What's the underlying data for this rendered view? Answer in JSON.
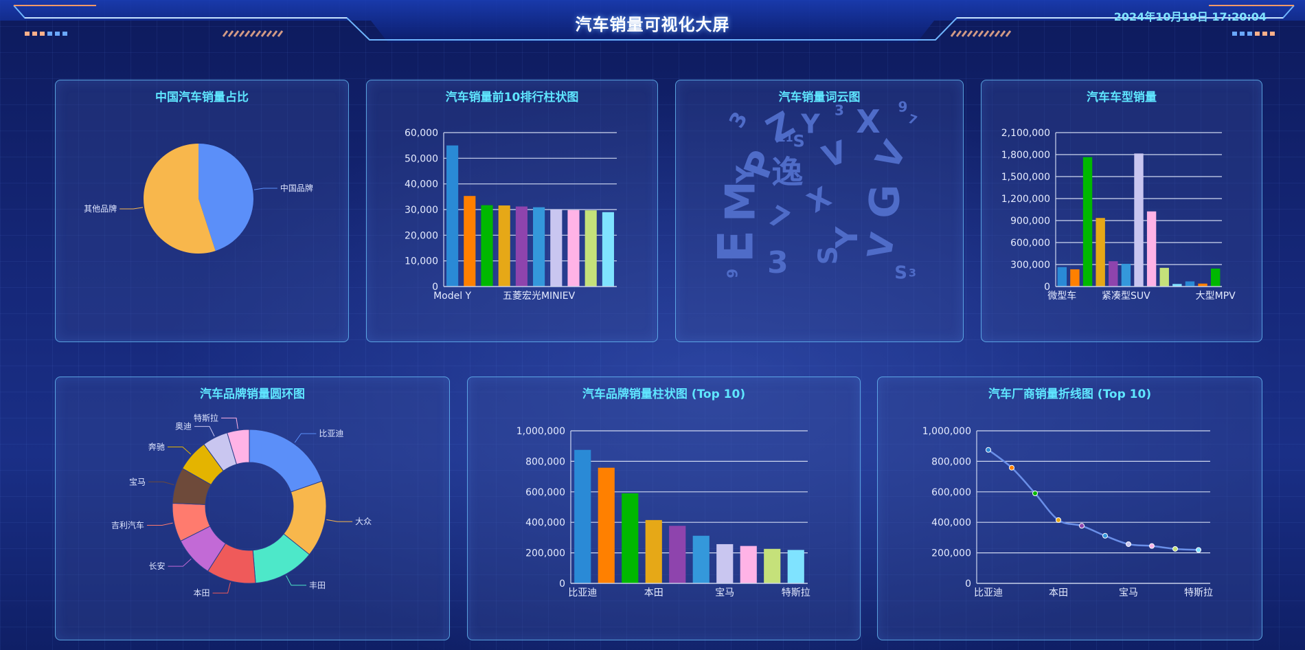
{
  "header": {
    "title": "汽车销量可视化大屏",
    "datetime": "2024年10月19日 17:20:04"
  },
  "panels": {
    "p1": {
      "title": "中国汽车销量占比"
    },
    "p2": {
      "title": "汽车销量前10排行柱状图"
    },
    "p3": {
      "title": "汽车销量词云图"
    },
    "p4": {
      "title": "汽车车型销量"
    },
    "p5": {
      "title": "汽车品牌销量圆环图"
    },
    "p6": {
      "title": "汽车品牌销量柱状图 (Top 10)"
    },
    "p7": {
      "title": "汽车厂商销量折线图 (Top 10)"
    }
  },
  "palette": [
    "#2a8ad6",
    "#ff8000",
    "#00b800",
    "#e6a817",
    "#8e44ad",
    "#3498db",
    "#c9c6f0",
    "#ffb3e6",
    "#c5e17a",
    "#7fe3ff"
  ],
  "chart_data": [
    {
      "id": "p1",
      "type": "pie",
      "labels": [
        "中国品牌",
        "其他品牌"
      ],
      "values": [
        45,
        55
      ],
      "colors": [
        "#5b8ff9",
        "#f8b74c"
      ]
    },
    {
      "id": "p2",
      "type": "bar",
      "categories": [
        "Model Y",
        "",
        "",
        "",
        "",
        "五菱宏光MINIEV",
        "",
        "",
        "",
        ""
      ],
      "tick_labels": [
        "Model Y",
        "五菱宏光MINIEV"
      ],
      "values": [
        55000,
        35300,
        31700,
        31600,
        31200,
        30900,
        30000,
        29800,
        29700,
        29000
      ],
      "ylim": [
        0,
        60000
      ],
      "yticks": [
        "0",
        "10,000",
        "20,000",
        "30,000",
        "40,000",
        "50,000",
        "60,000"
      ]
    },
    {
      "id": "p3",
      "type": "wordcloud",
      "words": [
        {
          "text": "E",
          "size": 70,
          "x": 0.08,
          "y": 0.8,
          "rot": -90
        },
        {
          "text": "M",
          "size": 60,
          "x": 0.1,
          "y": 0.55,
          "rot": -90
        },
        {
          "text": "P",
          "size": 52,
          "x": 0.2,
          "y": 0.35,
          "rot": -70
        },
        {
          "text": "Y",
          "size": 36,
          "x": 0.12,
          "y": 0.4,
          "rot": -90
        },
        {
          "text": "Z",
          "size": 50,
          "x": 0.3,
          "y": 0.15,
          "rot": -30
        },
        {
          "text": "Y",
          "size": 38,
          "x": 0.45,
          "y": 0.13,
          "rot": 0
        },
        {
          "text": "3",
          "size": 30,
          "x": 0.08,
          "y": 0.1,
          "rot": -60
        },
        {
          "text": "3",
          "size": 44,
          "x": 0.28,
          "y": 0.9,
          "rot": 0
        },
        {
          "text": "7",
          "size": 40,
          "x": 0.28,
          "y": 0.65,
          "rot": 30
        },
        {
          "text": "逸",
          "size": 46,
          "x": 0.33,
          "y": 0.4,
          "rot": 0
        },
        {
          "text": "X",
          "size": 40,
          "x": 0.5,
          "y": 0.55,
          "rot": -30
        },
        {
          "text": "V",
          "size": 44,
          "x": 0.58,
          "y": 0.3,
          "rot": -20
        },
        {
          "text": "X",
          "size": 46,
          "x": 0.75,
          "y": 0.12,
          "rot": 0
        },
        {
          "text": "V",
          "size": 48,
          "x": 0.88,
          "y": 0.3,
          "rot": -60
        },
        {
          "text": "G",
          "size": 60,
          "x": 0.85,
          "y": 0.55,
          "rot": -90
        },
        {
          "text": "V",
          "size": 48,
          "x": 0.83,
          "y": 0.8,
          "rot": -80
        },
        {
          "text": "Y",
          "size": 44,
          "x": 0.65,
          "y": 0.75,
          "rot": -90
        },
        {
          "text": "S",
          "size": 38,
          "x": 0.55,
          "y": 0.85,
          "rot": -90
        },
        {
          "text": "S",
          "size": 26,
          "x": 0.92,
          "y": 0.95,
          "rot": 0
        },
        {
          "text": "3",
          "size": 16,
          "x": 0.98,
          "y": 0.95,
          "rot": 0
        },
        {
          "text": "9",
          "size": 20,
          "x": 0.93,
          "y": 0.03,
          "rot": 0
        },
        {
          "text": "11",
          "size": 16,
          "x": 0.32,
          "y": 0.2,
          "rot": 0
        },
        {
          "text": "S",
          "size": 24,
          "x": 0.39,
          "y": 0.22,
          "rot": 0
        },
        {
          "text": "9",
          "size": 20,
          "x": 0.05,
          "y": 0.95,
          "rot": -90
        },
        {
          "text": "3",
          "size": 20,
          "x": 0.6,
          "y": 0.05,
          "rot": 0
        },
        {
          "text": "7",
          "size": 18,
          "x": 0.98,
          "y": 0.1,
          "rot": 20
        }
      ]
    },
    {
      "id": "p4",
      "type": "bar",
      "categories": [
        "微型车",
        "",
        "",
        "",
        "",
        "紧凑型SUV",
        "",
        "",
        "",
        "",
        "",
        "",
        "大型MPV"
      ],
      "tick_labels": [
        "微型车",
        "紧凑型SUV",
        "大型MPV"
      ],
      "values": [
        265000,
        235000,
        1765000,
        935000,
        345000,
        310000,
        1815000,
        1025000,
        255000,
        35000,
        70000,
        40000,
        245000
      ],
      "ylim": [
        0,
        2100000
      ],
      "yticks": [
        "0",
        "300,000",
        "600,000",
        "900,000",
        "1,200,000",
        "1,500,000",
        "1,800,000",
        "2,100,000"
      ]
    },
    {
      "id": "p5",
      "type": "pie",
      "donut": true,
      "labels": [
        "比亚迪",
        "大众",
        "丰田",
        "本田",
        "长安",
        "吉利汽车",
        "宝马",
        "奔驰",
        "奥迪",
        "特斯拉"
      ],
      "values": [
        190,
        155,
        125,
        100,
        82,
        78,
        73,
        65,
        52,
        45
      ],
      "colors": [
        "#5b8ff9",
        "#f8b74c",
        "#4de8c9",
        "#ef5a5a",
        "#c26ad6",
        "#ff7b6e",
        "#6e4a3a",
        "#e4b400",
        "#c9c6f0",
        "#ffb3e6"
      ]
    },
    {
      "id": "p6",
      "type": "bar",
      "categories": [
        "比亚迪",
        "",
        "",
        "本田",
        "",
        "",
        "宝马",
        "",
        "",
        "特斯拉"
      ],
      "tick_labels": [
        "比亚迪",
        "本田",
        "宝马",
        "特斯拉"
      ],
      "values": [
        875000,
        758000,
        590000,
        415000,
        377000,
        312000,
        257000,
        245000,
        226000,
        219000
      ],
      "ylim": [
        0,
        1000000
      ],
      "yticks": [
        "0",
        "200,000",
        "400,000",
        "600,000",
        "800,000",
        "1,000,000"
      ]
    },
    {
      "id": "p7",
      "type": "line",
      "categories": [
        "比亚迪",
        "",
        "",
        "本田",
        "",
        "",
        "宝马",
        "",
        "",
        "特斯拉"
      ],
      "tick_labels": [
        "比亚迪",
        "本田",
        "宝马",
        "特斯拉"
      ],
      "values": [
        875000,
        758000,
        590000,
        415000,
        377000,
        312000,
        257000,
        245000,
        226000,
        219000
      ],
      "ylim": [
        0,
        1000000
      ],
      "yticks": [
        "0",
        "200,000",
        "400,000",
        "600,000",
        "800,000",
        "1,000,000"
      ],
      "line_color": "#6a8fe8"
    }
  ]
}
